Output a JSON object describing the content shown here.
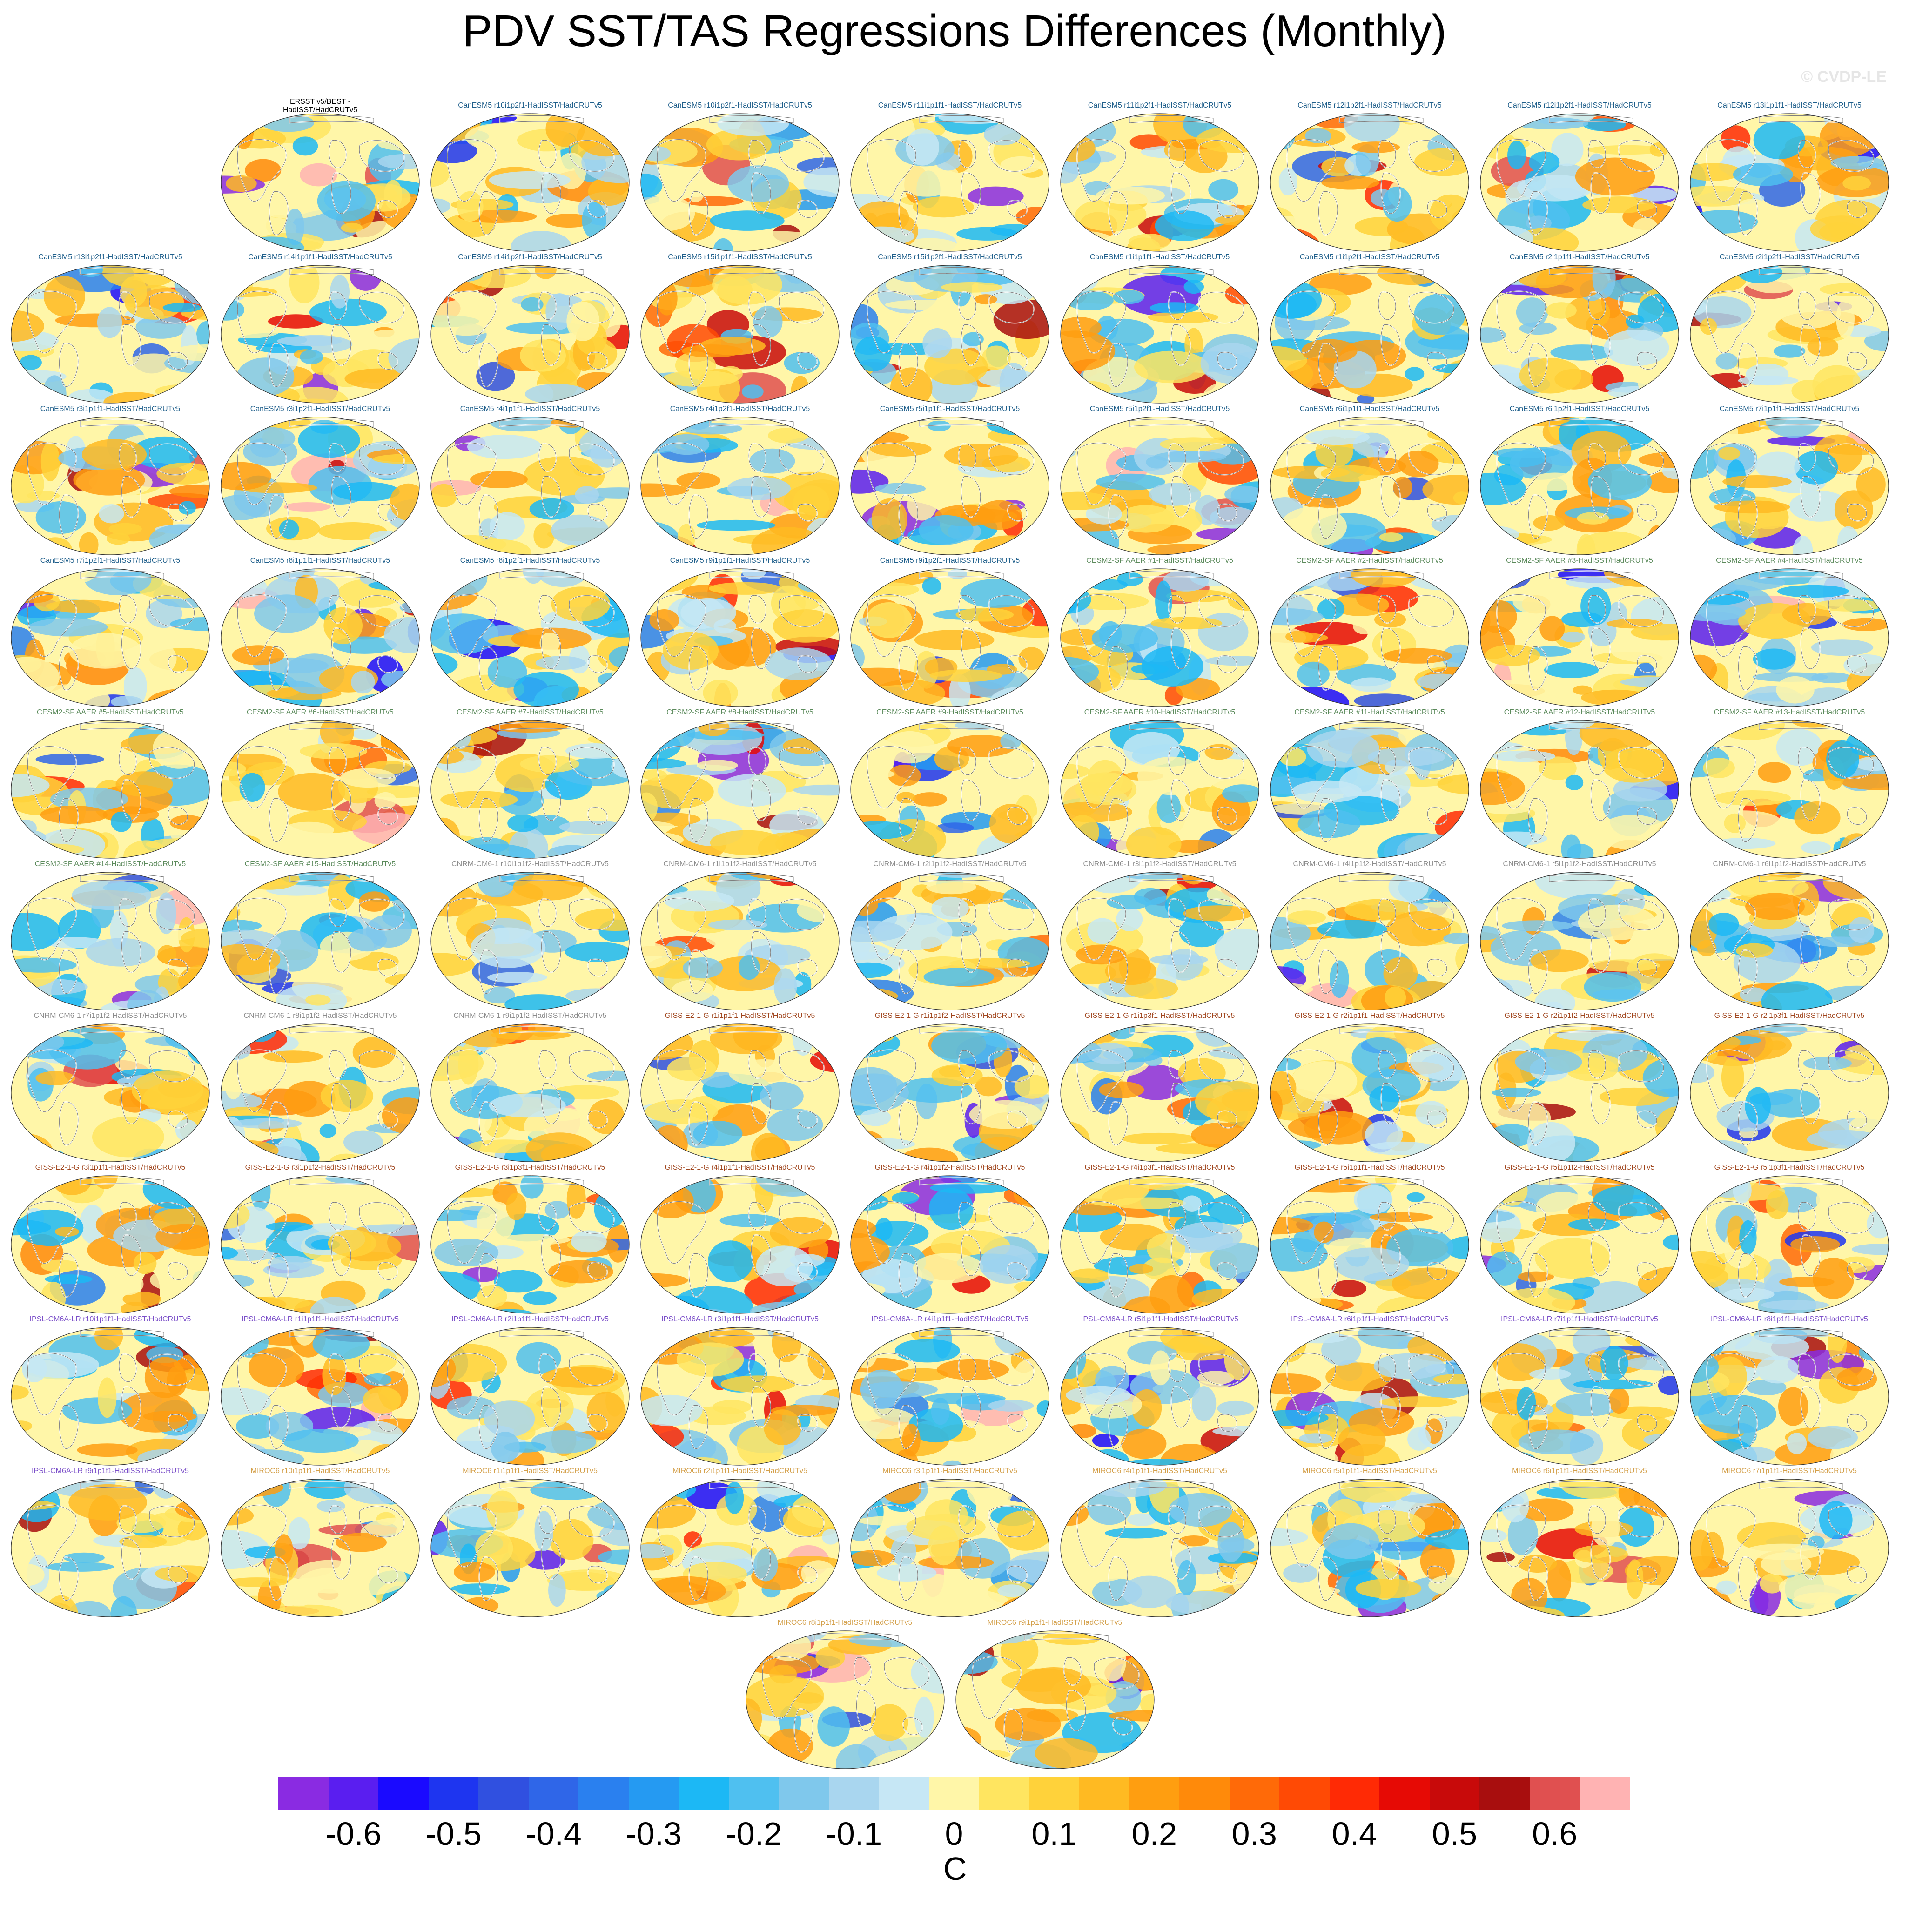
{
  "title": "PDV SST/TAS Regressions Differences (Monthly)",
  "watermark": "© CVDP-LE",
  "chart_data": {
    "type": "heatmap",
    "description_kind": "grid of global SST/TAS regression difference maps",
    "colorbar": {
      "units": "C",
      "ticks": [
        "-0.6",
        "-0.5",
        "-0.4",
        "-0.3",
        "-0.2",
        "-0.1",
        "0",
        "0.1",
        "0.2",
        "0.3",
        "0.4",
        "0.5",
        "0.6"
      ],
      "levels": [
        -0.65,
        -0.6,
        -0.55,
        -0.5,
        -0.45,
        -0.4,
        -0.35,
        -0.3,
        -0.25,
        -0.2,
        -0.15,
        -0.1,
        -0.05,
        0,
        0.05,
        0.1,
        0.15,
        0.2,
        0.25,
        0.3,
        0.35,
        0.4,
        0.45,
        0.5,
        0.55,
        0.6,
        0.65
      ],
      "colors": [
        "#8a2be2",
        "#5a1ef0",
        "#1a0aff",
        "#1e35f0",
        "#3050e0",
        "#2f66e8",
        "#2a80ef",
        "#259af2",
        "#1cb8f5",
        "#4fc0f0",
        "#7fc8ec",
        "#a9d6ef",
        "#c6e7f5",
        "#fff6a8",
        "#ffe560",
        "#ffd23a",
        "#ffba22",
        "#ff9e10",
        "#ff8a0a",
        "#ff6a08",
        "#ff4a05",
        "#ff2a05",
        "#e60a05",
        "#c80a0a",
        "#a80e0e",
        "#e05050",
        "#ffb3b3"
      ]
    },
    "panels": [
      {
        "label": "ERSST v5/BEST -\nHadISST/HadCRUTv5",
        "group": "obs",
        "row": 0,
        "col": 1,
        "seed": 1
      },
      {
        "label": "CanESM5 r10i1p2f1-HadISST/HadCRUTv5",
        "group": "CanESM5",
        "row": 0,
        "col": 2,
        "seed": 2
      },
      {
        "label": "CanESM5 r10i1p2f1-HadISST/HadCRUTv5",
        "group": "CanESM5",
        "row": 0,
        "col": 3,
        "seed": 3
      },
      {
        "label": "CanESM5 r11i1p1f1-HadISST/HadCRUTv5",
        "group": "CanESM5",
        "row": 0,
        "col": 4,
        "seed": 4
      },
      {
        "label": "CanESM5 r11i1p2f1-HadISST/HadCRUTv5",
        "group": "CanESM5",
        "row": 0,
        "col": 5,
        "seed": 5
      },
      {
        "label": "CanESM5 r12i1p2f1-HadISST/HadCRUTv5",
        "group": "CanESM5",
        "row": 0,
        "col": 6,
        "seed": 6
      },
      {
        "label": "CanESM5 r12i1p2f1-HadISST/HadCRUTv5",
        "group": "CanESM5",
        "row": 0,
        "col": 7,
        "seed": 7
      },
      {
        "label": "CanESM5 r13i1p1f1-HadISST/HadCRUTv5",
        "group": "CanESM5",
        "row": 0,
        "col": 8,
        "seed": 8
      },
      {
        "label": "CanESM5 r13i1p2f1-HadISST/HadCRUTv5",
        "group": "CanESM5",
        "row": 1,
        "col": 0,
        "seed": 9
      },
      {
        "label": "CanESM5 r14i1p1f1-HadISST/HadCRUTv5",
        "group": "CanESM5",
        "row": 1,
        "col": 1,
        "seed": 10
      },
      {
        "label": "CanESM5 r14i1p2f1-HadISST/HadCRUTv5",
        "group": "CanESM5",
        "row": 1,
        "col": 2,
        "seed": 11
      },
      {
        "label": "CanESM5 r15i1p1f1-HadISST/HadCRUTv5",
        "group": "CanESM5",
        "row": 1,
        "col": 3,
        "seed": 12
      },
      {
        "label": "CanESM5 r15i1p2f1-HadISST/HadCRUTv5",
        "group": "CanESM5",
        "row": 1,
        "col": 4,
        "seed": 13
      },
      {
        "label": "CanESM5 r1i1p1f1-HadISST/HadCRUTv5",
        "group": "CanESM5",
        "row": 1,
        "col": 5,
        "seed": 14
      },
      {
        "label": "CanESM5 r1i1p2f1-HadISST/HadCRUTv5",
        "group": "CanESM5",
        "row": 1,
        "col": 6,
        "seed": 15
      },
      {
        "label": "CanESM5 r2i1p1f1-HadISST/HadCRUTv5",
        "group": "CanESM5",
        "row": 1,
        "col": 7,
        "seed": 16
      },
      {
        "label": "CanESM5 r2i1p2f1-HadISST/HadCRUTv5",
        "group": "CanESM5",
        "row": 1,
        "col": 8,
        "seed": 17
      },
      {
        "label": "CanESM5 r3i1p1f1-HadISST/HadCRUTv5",
        "group": "CanESM5",
        "row": 2,
        "col": 0,
        "seed": 18
      },
      {
        "label": "CanESM5 r3i1p2f1-HadISST/HadCRUTv5",
        "group": "CanESM5",
        "row": 2,
        "col": 1,
        "seed": 19
      },
      {
        "label": "CanESM5 r4i1p1f1-HadISST/HadCRUTv5",
        "group": "CanESM5",
        "row": 2,
        "col": 2,
        "seed": 20
      },
      {
        "label": "CanESM5 r4i1p2f1-HadISST/HadCRUTv5",
        "group": "CanESM5",
        "row": 2,
        "col": 3,
        "seed": 21
      },
      {
        "label": "CanESM5 r5i1p1f1-HadISST/HadCRUTv5",
        "group": "CanESM5",
        "row": 2,
        "col": 4,
        "seed": 22
      },
      {
        "label": "CanESM5 r5i1p2f1-HadISST/HadCRUTv5",
        "group": "CanESM5",
        "row": 2,
        "col": 5,
        "seed": 23
      },
      {
        "label": "CanESM5 r6i1p1f1-HadISST/HadCRUTv5",
        "group": "CanESM5",
        "row": 2,
        "col": 6,
        "seed": 24
      },
      {
        "label": "CanESM5 r6i1p2f1-HadISST/HadCRUTv5",
        "group": "CanESM5",
        "row": 2,
        "col": 7,
        "seed": 25
      },
      {
        "label": "CanESM5 r7i1p1f1-HadISST/HadCRUTv5",
        "group": "CanESM5",
        "row": 2,
        "col": 8,
        "seed": 26
      },
      {
        "label": "CanESM5 r7i1p2f1-HadISST/HadCRUTv5",
        "group": "CanESM5",
        "row": 3,
        "col": 0,
        "seed": 27
      },
      {
        "label": "CanESM5 r8i1p1f1-HadISST/HadCRUTv5",
        "group": "CanESM5",
        "row": 3,
        "col": 1,
        "seed": 28
      },
      {
        "label": "CanESM5 r8i1p2f1-HadISST/HadCRUTv5",
        "group": "CanESM5",
        "row": 3,
        "col": 2,
        "seed": 29
      },
      {
        "label": "CanESM5 r9i1p1f1-HadISST/HadCRUTv5",
        "group": "CanESM5",
        "row": 3,
        "col": 3,
        "seed": 30
      },
      {
        "label": "CanESM5 r9i1p2f1-HadISST/HadCRUTv5",
        "group": "CanESM5",
        "row": 3,
        "col": 4,
        "seed": 31
      },
      {
        "label": "CESM2-SF AAER #1-HadISST/HadCRUTv5",
        "group": "CESM2",
        "row": 3,
        "col": 5,
        "seed": 32
      },
      {
        "label": "CESM2-SF AAER #2-HadISST/HadCRUTv5",
        "group": "CESM2",
        "row": 3,
        "col": 6,
        "seed": 33
      },
      {
        "label": "CESM2-SF AAER #3-HadISST/HadCRUTv5",
        "group": "CESM2",
        "row": 3,
        "col": 7,
        "seed": 34
      },
      {
        "label": "CESM2-SF AAER #4-HadISST/HadCRUTv5",
        "group": "CESM2",
        "row": 3,
        "col": 8,
        "seed": 35
      },
      {
        "label": "CESM2-SF AAER #5-HadISST/HadCRUTv5",
        "group": "CESM2",
        "row": 4,
        "col": 0,
        "seed": 36
      },
      {
        "label": "CESM2-SF AAER #6-HadISST/HadCRUTv5",
        "group": "CESM2",
        "row": 4,
        "col": 1,
        "seed": 37
      },
      {
        "label": "CESM2-SF AAER #7-HadISST/HadCRUTv5",
        "group": "CESM2",
        "row": 4,
        "col": 2,
        "seed": 38
      },
      {
        "label": "CESM2-SF AAER #8-HadISST/HadCRUTv5",
        "group": "CESM2",
        "row": 4,
        "col": 3,
        "seed": 39
      },
      {
        "label": "CESM2-SF AAER #9-HadISST/HadCRUTv5",
        "group": "CESM2",
        "row": 4,
        "col": 4,
        "seed": 40
      },
      {
        "label": "CESM2-SF AAER #10-HadISST/HadCRUTv5",
        "group": "CESM2",
        "row": 4,
        "col": 5,
        "seed": 41
      },
      {
        "label": "CESM2-SF AAER #11-HadISST/HadCRUTv5",
        "group": "CESM2",
        "row": 4,
        "col": 6,
        "seed": 42
      },
      {
        "label": "CESM2-SF AAER #12-HadISST/HadCRUTv5",
        "group": "CESM2",
        "row": 4,
        "col": 7,
        "seed": 43
      },
      {
        "label": "CESM2-SF AAER #13-HadISST/HadCRUTv5",
        "group": "CESM2",
        "row": 4,
        "col": 8,
        "seed": 44
      },
      {
        "label": "CESM2-SF AAER #14-HadISST/HadCRUTv5",
        "group": "CESM2",
        "row": 5,
        "col": 0,
        "seed": 45
      },
      {
        "label": "CESM2-SF AAER #15-HadISST/HadCRUTv5",
        "group": "CESM2",
        "row": 5,
        "col": 1,
        "seed": 46
      },
      {
        "label": "CNRM-CM6-1 r10i1p1f2-HadISST/HadCRUTv5",
        "group": "CNRM",
        "row": 5,
        "col": 2,
        "seed": 47
      },
      {
        "label": "CNRM-CM6-1 r1i1p1f2-HadISST/HadCRUTv5",
        "group": "CNRM",
        "row": 5,
        "col": 3,
        "seed": 48
      },
      {
        "label": "CNRM-CM6-1 r2i1p1f2-HadISST/HadCRUTv5",
        "group": "CNRM",
        "row": 5,
        "col": 4,
        "seed": 49
      },
      {
        "label": "CNRM-CM6-1 r3i1p1f2-HadISST/HadCRUTv5",
        "group": "CNRM",
        "row": 5,
        "col": 5,
        "seed": 50
      },
      {
        "label": "CNRM-CM6-1 r4i1p1f2-HadISST/HadCRUTv5",
        "group": "CNRM",
        "row": 5,
        "col": 6,
        "seed": 51
      },
      {
        "label": "CNRM-CM6-1 r5i1p1f2-HadISST/HadCRUTv5",
        "group": "CNRM",
        "row": 5,
        "col": 7,
        "seed": 52
      },
      {
        "label": "CNRM-CM6-1 r6i1p1f2-HadISST/HadCRUTv5",
        "group": "CNRM",
        "row": 5,
        "col": 8,
        "seed": 53
      },
      {
        "label": "CNRM-CM6-1 r7i1p1f2-HadISST/HadCRUTv5",
        "group": "CNRM",
        "row": 6,
        "col": 0,
        "seed": 54
      },
      {
        "label": "CNRM-CM6-1 r8i1p1f2-HadISST/HadCRUTv5",
        "group": "CNRM",
        "row": 6,
        "col": 1,
        "seed": 55
      },
      {
        "label": "CNRM-CM6-1 r9i1p1f2-HadISST/HadCRUTv5",
        "group": "CNRM",
        "row": 6,
        "col": 2,
        "seed": 56
      },
      {
        "label": "GISS-E2-1-G r1i1p1f1-HadISST/HadCRUTv5",
        "group": "GISS",
        "row": 6,
        "col": 3,
        "seed": 57
      },
      {
        "label": "GISS-E2-1-G r1i1p1f2-HadISST/HadCRUTv5",
        "group": "GISS",
        "row": 6,
        "col": 4,
        "seed": 58
      },
      {
        "label": "GISS-E2-1-G r1i1p3f1-HadISST/HadCRUTv5",
        "group": "GISS",
        "row": 6,
        "col": 5,
        "seed": 59
      },
      {
        "label": "GISS-E2-1-G r2i1p1f1-HadISST/HadCRUTv5",
        "group": "GISS",
        "row": 6,
        "col": 6,
        "seed": 60
      },
      {
        "label": "GISS-E2-1-G r2i1p1f2-HadISST/HadCRUTv5",
        "group": "GISS",
        "row": 6,
        "col": 7,
        "seed": 61
      },
      {
        "label": "GISS-E2-1-G r2i1p3f1-HadISST/HadCRUTv5",
        "group": "GISS",
        "row": 6,
        "col": 8,
        "seed": 62
      },
      {
        "label": "GISS-E2-1-G r3i1p1f1-HadISST/HadCRUTv5",
        "group": "GISS",
        "row": 7,
        "col": 0,
        "seed": 63
      },
      {
        "label": "GISS-E2-1-G r3i1p1f2-HadISST/HadCRUTv5",
        "group": "GISS",
        "row": 7,
        "col": 1,
        "seed": 64
      },
      {
        "label": "GISS-E2-1-G r3i1p3f1-HadISST/HadCRUTv5",
        "group": "GISS",
        "row": 7,
        "col": 2,
        "seed": 65
      },
      {
        "label": "GISS-E2-1-G r4i1p1f1-HadISST/HadCRUTv5",
        "group": "GISS",
        "row": 7,
        "col": 3,
        "seed": 66
      },
      {
        "label": "GISS-E2-1-G r4i1p1f2-HadISST/HadCRUTv5",
        "group": "GISS",
        "row": 7,
        "col": 4,
        "seed": 67
      },
      {
        "label": "GISS-E2-1-G r4i1p3f1-HadISST/HadCRUTv5",
        "group": "GISS",
        "row": 7,
        "col": 5,
        "seed": 68
      },
      {
        "label": "GISS-E2-1-G r5i1p1f1-HadISST/HadCRUTv5",
        "group": "GISS",
        "row": 7,
        "col": 6,
        "seed": 69
      },
      {
        "label": "GISS-E2-1-G r5i1p1f2-HadISST/HadCRUTv5",
        "group": "GISS",
        "row": 7,
        "col": 7,
        "seed": 70
      },
      {
        "label": "GISS-E2-1-G r5i1p3f1-HadISST/HadCRUTv5",
        "group": "GISS",
        "row": 7,
        "col": 8,
        "seed": 71
      },
      {
        "label": "IPSL-CM6A-LR r10i1p1f1-HadISST/HadCRUTv5",
        "group": "IPSL",
        "row": 8,
        "col": 0,
        "seed": 72
      },
      {
        "label": "IPSL-CM6A-LR r1i1p1f1-HadISST/HadCRUTv5",
        "group": "IPSL",
        "row": 8,
        "col": 1,
        "seed": 73
      },
      {
        "label": "IPSL-CM6A-LR r2i1p1f1-HadISST/HadCRUTv5",
        "group": "IPSL",
        "row": 8,
        "col": 2,
        "seed": 74
      },
      {
        "label": "IPSL-CM6A-LR r3i1p1f1-HadISST/HadCRUTv5",
        "group": "IPSL",
        "row": 8,
        "col": 3,
        "seed": 75
      },
      {
        "label": "IPSL-CM6A-LR r4i1p1f1-HadISST/HadCRUTv5",
        "group": "IPSL",
        "row": 8,
        "col": 4,
        "seed": 76
      },
      {
        "label": "IPSL-CM6A-LR r5i1p1f1-HadISST/HadCRUTv5",
        "group": "IPSL",
        "row": 8,
        "col": 5,
        "seed": 77
      },
      {
        "label": "IPSL-CM6A-LR r6i1p1f1-HadISST/HadCRUTv5",
        "group": "IPSL",
        "row": 8,
        "col": 6,
        "seed": 78
      },
      {
        "label": "IPSL-CM6A-LR r7i1p1f1-HadISST/HadCRUTv5",
        "group": "IPSL",
        "row": 8,
        "col": 7,
        "seed": 79
      },
      {
        "label": "IPSL-CM6A-LR r8i1p1f1-HadISST/HadCRUTv5",
        "group": "IPSL",
        "row": 8,
        "col": 8,
        "seed": 80
      },
      {
        "label": "IPSL-CM6A-LR r9i1p1f1-HadISST/HadCRUTv5",
        "group": "IPSL",
        "row": 9,
        "col": 0,
        "seed": 81
      },
      {
        "label": "MIROC6 r10i1p1f1-HadISST/HadCRUTv5",
        "group": "MIROC",
        "row": 9,
        "col": 1,
        "seed": 82
      },
      {
        "label": "MIROC6 r1i1p1f1-HadISST/HadCRUTv5",
        "group": "MIROC",
        "row": 9,
        "col": 2,
        "seed": 83
      },
      {
        "label": "MIROC6 r2i1p1f1-HadISST/HadCRUTv5",
        "group": "MIROC",
        "row": 9,
        "col": 3,
        "seed": 84
      },
      {
        "label": "MIROC6 r3i1p1f1-HadISST/HadCRUTv5",
        "group": "MIROC",
        "row": 9,
        "col": 4,
        "seed": 85
      },
      {
        "label": "MIROC6 r4i1p1f1-HadISST/HadCRUTv5",
        "group": "MIROC",
        "row": 9,
        "col": 5,
        "seed": 86
      },
      {
        "label": "MIROC6 r5i1p1f1-HadISST/HadCRUTv5",
        "group": "MIROC",
        "row": 9,
        "col": 6,
        "seed": 87
      },
      {
        "label": "MIROC6 r6i1p1f1-HadISST/HadCRUTv5",
        "group": "MIROC",
        "row": 9,
        "col": 7,
        "seed": 88
      },
      {
        "label": "MIROC6 r7i1p1f1-HadISST/HadCRUTv5",
        "group": "MIROC",
        "row": 9,
        "col": 8,
        "seed": 89
      },
      {
        "label": "MIROC6 r8i1p1f1-HadISST/HadCRUTv5",
        "group": "MIROC",
        "row": 10,
        "col": 3.5,
        "seed": 90
      },
      {
        "label": "MIROC6 r9i1p1f1-HadISST/HadCRUTv5",
        "group": "MIROC",
        "row": 10,
        "col": 4.5,
        "seed": 91
      }
    ],
    "group_colors": {
      "obs": "#000000",
      "CanESM5": "#1f5f8b",
      "CESM2": "#5b8a5b",
      "CNRM": "#8c8c8c",
      "GISS": "#a0461e",
      "IPSL": "#7b4fc9",
      "MIROC": "#d4a04a"
    }
  }
}
